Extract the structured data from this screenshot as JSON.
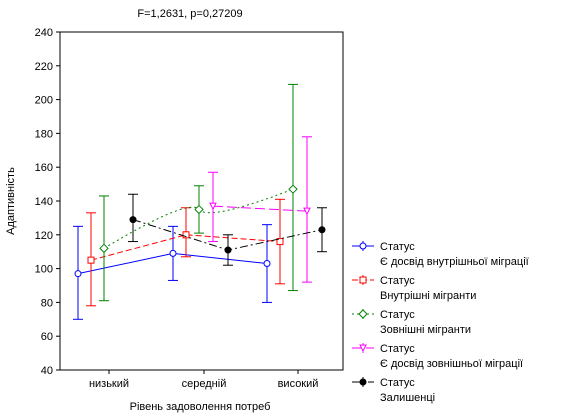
{
  "chart_data": {
    "type": "line",
    "title": "F=1,2631, p=0,27209",
    "xlabel": "Рівень задоволення потреб",
    "ylabel": "Адаптивність",
    "categories": [
      "низький",
      "середній",
      "високий"
    ],
    "ylim": [
      40,
      240
    ],
    "yticks": [
      40,
      60,
      80,
      100,
      120,
      140,
      160,
      180,
      200,
      220,
      240
    ],
    "grid": false,
    "legend_position": "right",
    "series": [
      {
        "legend_title": "Статус",
        "name": "Є досвід внутрішньої міграції",
        "color": "#0000ff",
        "marker": "circle",
        "line_style": "solid",
        "values": [
          97,
          109,
          103
        ],
        "error_low": [
          70,
          93,
          80
        ],
        "error_high": [
          125,
          125,
          126
        ]
      },
      {
        "legend_title": "Статус",
        "name": "Внутрішні мігранти",
        "color": "#ff0000",
        "marker": "square",
        "line_style": "dashed",
        "values": [
          105,
          120,
          116
        ],
        "error_low": [
          78,
          107,
          91
        ],
        "error_high": [
          133,
          136,
          141
        ]
      },
      {
        "legend_title": "Статус",
        "name": "Зовнішні мігранти",
        "color": "#008000",
        "marker": "diamond",
        "line_style": "dotted",
        "values": [
          112,
          135,
          147
        ],
        "error_low": [
          81,
          121,
          87
        ],
        "error_high": [
          143,
          149,
          209
        ]
      },
      {
        "legend_title": "Статус",
        "name": "Є досвід зовнішньої міграції",
        "color": "#ff00ff",
        "marker": "triangle",
        "line_style": "long-dash",
        "values": [
          null,
          137,
          134
        ],
        "error_low": [
          null,
          116,
          92
        ],
        "error_high": [
          null,
          157,
          178
        ]
      },
      {
        "legend_title": "Статус",
        "name": "Залишенці",
        "color": "#000000",
        "marker": "filled-circle",
        "line_style": "dash-dot",
        "values": [
          129,
          111,
          123
        ],
        "error_low": [
          116,
          102,
          110
        ],
        "error_high": [
          144,
          120,
          136
        ]
      }
    ]
  }
}
